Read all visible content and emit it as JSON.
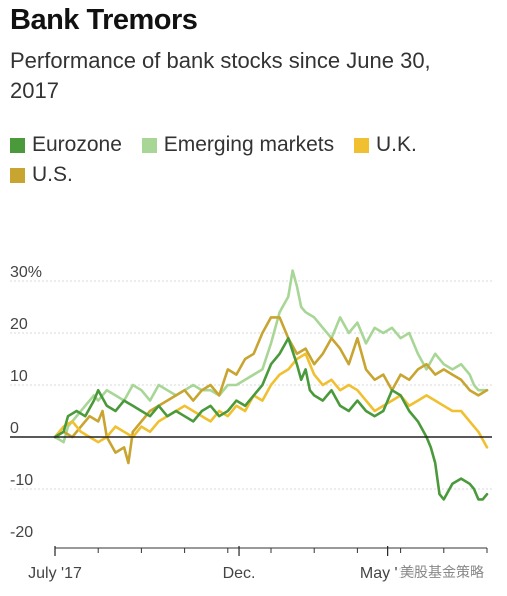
{
  "header": {
    "title": "Bank Tremors",
    "subtitle": "Performance of bank stocks since June 30, 2017"
  },
  "watermark": "美股基金策略",
  "chart_data": {
    "type": "line",
    "title": "Bank Tremors",
    "subtitle": "Performance of bank stocks since June 30, 2017",
    "xlabel": "",
    "ylabel": "",
    "x_ticks": [
      "July '17",
      "Dec.",
      "May '18"
    ],
    "y_ticks": [
      "30%",
      "20",
      "10",
      "0",
      "-10",
      "-20"
    ],
    "ylim": [
      -20,
      32
    ],
    "x_range": [
      0,
      100
    ],
    "grid": true,
    "legend_position": "top",
    "series": [
      {
        "name": "Eurozone",
        "color": "#4a9a3c",
        "x": [
          0,
          2,
          3,
          5,
          7,
          9,
          10,
          12,
          14,
          16,
          18,
          20,
          22,
          24,
          26,
          28,
          30,
          32,
          34,
          36,
          38,
          40,
          42,
          44,
          46,
          48,
          50,
          52,
          54,
          56,
          57,
          58,
          59,
          60,
          62,
          64,
          66,
          68,
          70,
          72,
          74,
          76,
          78,
          80,
          82,
          84,
          86,
          87,
          88,
          89,
          90,
          92,
          94,
          96,
          97,
          98,
          99,
          100
        ],
        "values": [
          0,
          1,
          4,
          5,
          4,
          7,
          9,
          6,
          5,
          7,
          6,
          5,
          4,
          6,
          4,
          5,
          4,
          3,
          5,
          6,
          4,
          5,
          7,
          6,
          8,
          10,
          14,
          16,
          19,
          14,
          11,
          13,
          9,
          8,
          7,
          9,
          6,
          5,
          7,
          5,
          4,
          5,
          9,
          8,
          5,
          3,
          0,
          -2,
          -5,
          -11,
          -12,
          -9,
          -8,
          -9,
          -10,
          -12,
          -12,
          -11
        ]
      },
      {
        "name": "Emerging markets",
        "color": "#a8d696",
        "x": [
          0,
          2,
          3,
          5,
          7,
          9,
          10,
          12,
          14,
          16,
          18,
          20,
          22,
          24,
          26,
          28,
          30,
          32,
          34,
          36,
          38,
          40,
          42,
          44,
          46,
          48,
          50,
          52,
          54,
          55,
          56,
          57,
          58,
          60,
          62,
          64,
          66,
          68,
          70,
          72,
          74,
          76,
          78,
          80,
          82,
          84,
          86,
          88,
          90,
          92,
          94,
          96,
          97,
          98,
          99,
          100
        ],
        "values": [
          0,
          -1,
          2,
          4,
          6,
          8,
          7,
          9,
          8,
          7,
          10,
          9,
          7,
          10,
          9,
          8,
          9,
          10,
          9,
          9,
          8,
          10,
          10,
          11,
          12,
          13,
          18,
          24,
          27,
          32,
          29,
          25,
          24,
          23,
          21,
          19,
          23,
          20,
          22,
          18,
          21,
          20,
          21,
          19,
          20,
          16,
          13,
          16,
          14,
          13,
          14,
          12,
          10,
          9,
          9,
          9
        ]
      },
      {
        "name": "U.K.",
        "color": "#f0c030",
        "x": [
          0,
          2,
          4,
          6,
          8,
          10,
          12,
          14,
          16,
          18,
          20,
          22,
          24,
          26,
          28,
          30,
          32,
          34,
          36,
          38,
          40,
          42,
          44,
          46,
          48,
          50,
          52,
          54,
          56,
          58,
          60,
          62,
          64,
          66,
          68,
          70,
          72,
          74,
          76,
          78,
          80,
          82,
          84,
          86,
          88,
          90,
          92,
          94,
          96,
          98,
          100
        ],
        "values": [
          0,
          2,
          3,
          1,
          0,
          -1,
          0,
          2,
          1,
          0,
          2,
          1,
          3,
          4,
          5,
          6,
          5,
          4,
          3,
          5,
          4,
          6,
          5,
          8,
          7,
          10,
          12,
          13,
          15,
          16,
          12,
          10,
          11,
          9,
          10,
          9,
          7,
          5,
          6,
          7,
          8,
          6,
          7,
          8,
          7,
          6,
          5,
          5,
          3,
          1,
          -2
        ]
      },
      {
        "name": "U.S.",
        "color": "#c8a430",
        "x": [
          0,
          2,
          4,
          6,
          8,
          10,
          11,
          12,
          14,
          16,
          17,
          18,
          20,
          22,
          24,
          26,
          28,
          30,
          32,
          34,
          36,
          38,
          40,
          42,
          44,
          46,
          48,
          50,
          52,
          54,
          56,
          58,
          60,
          62,
          64,
          66,
          68,
          70,
          72,
          74,
          76,
          78,
          80,
          82,
          84,
          86,
          88,
          90,
          92,
          94,
          96,
          98,
          100
        ],
        "values": [
          0,
          1,
          0,
          2,
          4,
          3,
          5,
          0,
          -3,
          -2,
          -5,
          1,
          3,
          5,
          6,
          7,
          8,
          9,
          7,
          9,
          10,
          8,
          13,
          12,
          15,
          16,
          20,
          23,
          23,
          19,
          16,
          17,
          14,
          16,
          19,
          17,
          14,
          19,
          13,
          11,
          12,
          9,
          12,
          11,
          13,
          14,
          12,
          13,
          12,
          11,
          9,
          8,
          9
        ]
      }
    ]
  }
}
